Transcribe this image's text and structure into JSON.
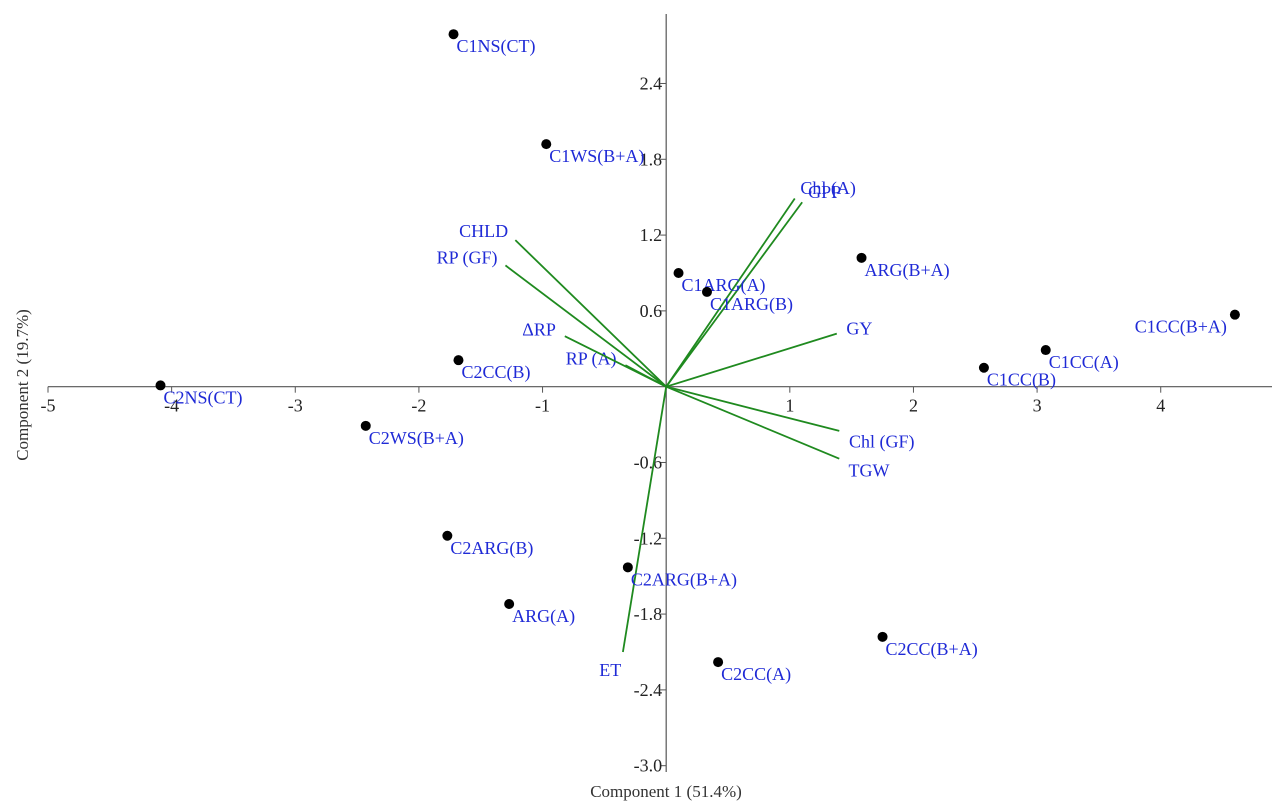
{
  "chart_data": {
    "type": "scatter",
    "title": "",
    "xlabel": "Component 1 (51.4%)",
    "ylabel": "Component 2 (19.7%)",
    "xlim": [
      -5,
      4.9
    ],
    "ylim": [
      -3.05,
      2.95
    ],
    "x_ticks": [
      -5,
      -4,
      -3,
      -2,
      -1,
      1,
      2,
      3,
      4
    ],
    "y_ticks": [
      -3.0,
      -2.4,
      -1.8,
      -1.2,
      -0.6,
      0.6,
      1.2,
      1.8,
      2.4
    ],
    "x_tick_labels": [
      "-5",
      "-4",
      "-3",
      "-2",
      "-1",
      "1",
      "2",
      "3",
      "4"
    ],
    "y_tick_labels": [
      "-3.0",
      "-2.4",
      "-1.8",
      "-1.2",
      "-0.6",
      "0.6",
      "1.2",
      "1.8",
      "2.4"
    ],
    "grid": false,
    "colors": {
      "points": "#000000",
      "labels": "#1f2ad6",
      "vectors": "#1f8a1f"
    },
    "points": [
      {
        "label": "C1NS(CT)",
        "x": -1.72,
        "y": 2.79
      },
      {
        "label": "C1WS(B+A)",
        "x": -0.97,
        "y": 1.92
      },
      {
        "label": "C1ARG(A)",
        "x": 0.1,
        "y": 0.9
      },
      {
        "label": "C1ARG(B)",
        "x": 0.33,
        "y": 0.75
      },
      {
        "label": "ARG(B+A)",
        "x": 1.58,
        "y": 1.02
      },
      {
        "label": "C1CC(B+A)",
        "x": 4.6,
        "y": 0.57
      },
      {
        "label": "C1CC(A)",
        "x": 3.07,
        "y": 0.29
      },
      {
        "label": "C1CC(B)",
        "x": 2.57,
        "y": 0.15
      },
      {
        "label": "C2CC(B)",
        "x": -1.68,
        "y": 0.21
      },
      {
        "label": "C2NS(CT)",
        "x": -4.09,
        "y": 0.01
      },
      {
        "label": "C2WS(B+A)",
        "x": -2.43,
        "y": -0.31
      },
      {
        "label": "C2ARG(B)",
        "x": -1.77,
        "y": -1.18
      },
      {
        "label": "C2ARG(B+A)",
        "x": -0.31,
        "y": -1.43
      },
      {
        "label": "ARG(A)",
        "x": -1.27,
        "y": -1.72
      },
      {
        "label": "C2CC(A)",
        "x": 0.42,
        "y": -2.18
      },
      {
        "label": "C2CC(B+A)",
        "x": 1.75,
        "y": -1.98
      }
    ],
    "vectors": [
      {
        "label": "Chl (A)",
        "x": 1.04,
        "y": 1.49
      },
      {
        "label": "GPP",
        "x": 1.1,
        "y": 1.46
      },
      {
        "label": "CHLD",
        "x": -1.22,
        "y": 1.16
      },
      {
        "label": "RP (GF)",
        "x": -1.3,
        "y": 0.96
      },
      {
        "label": "RP (A)",
        "x": -0.33,
        "y": 0.17
      },
      {
        "label": "ΔRP",
        "x": -0.82,
        "y": 0.4
      },
      {
        "label": "GY",
        "x": 1.38,
        "y": 0.42
      },
      {
        "label": "Chl (GF)",
        "x": 1.4,
        "y": -0.35
      },
      {
        "label": "TGW",
        "x": 1.4,
        "y": -0.57
      },
      {
        "label": "ET",
        "x": -0.35,
        "y": -2.1
      }
    ]
  }
}
